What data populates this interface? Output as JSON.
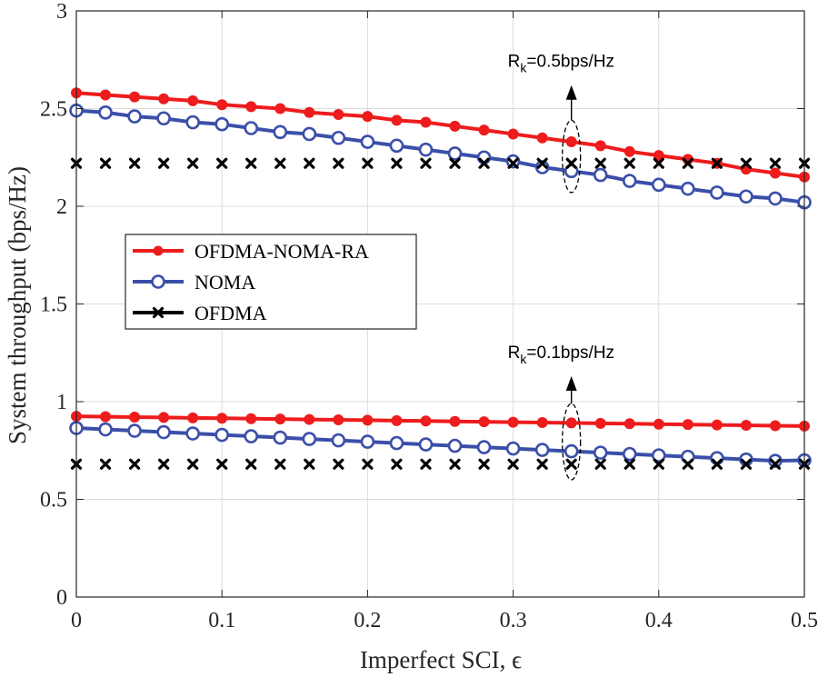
{
  "chart_data": {
    "type": "line",
    "title": "",
    "xlabel": "Imperfect SCI, ϵ",
    "ylabel": "System throughput (bps/Hz)",
    "xlim": [
      0,
      0.5
    ],
    "ylim": [
      0,
      3
    ],
    "xticks": [
      0,
      0.1,
      0.2,
      0.3,
      0.4,
      0.5
    ],
    "xtick_labels": [
      "0",
      "0.1",
      "0.2",
      "0.3",
      "0.4",
      "0.5"
    ],
    "yticks": [
      0,
      0.5,
      1,
      1.5,
      2,
      2.5,
      3
    ],
    "ytick_labels": [
      "0",
      "0.5",
      "1",
      "1.5",
      "2",
      "2.5",
      "3"
    ],
    "grid": true,
    "legend_position": "center-left",
    "x": [
      0,
      0.02,
      0.04,
      0.06,
      0.08,
      0.1,
      0.12,
      0.14,
      0.16,
      0.18,
      0.2,
      0.22,
      0.24,
      0.26,
      0.28,
      0.3,
      0.32,
      0.34,
      0.36,
      0.38,
      0.4,
      0.42,
      0.44,
      0.46,
      0.48,
      0.5
    ],
    "series": [
      {
        "name": "OFDMA-NOMA-RA",
        "group": "Rk=0.5",
        "color": "#ee1c1c",
        "marker": "filled-circle",
        "values": [
          2.58,
          2.57,
          2.56,
          2.55,
          2.54,
          2.52,
          2.51,
          2.5,
          2.48,
          2.47,
          2.46,
          2.44,
          2.43,
          2.41,
          2.39,
          2.37,
          2.35,
          2.33,
          2.31,
          2.28,
          2.26,
          2.24,
          2.22,
          2.19,
          2.17,
          2.15
        ]
      },
      {
        "name": "NOMA",
        "group": "Rk=0.5",
        "color": "#3b4fa9",
        "marker": "open-circle",
        "values": [
          2.49,
          2.48,
          2.46,
          2.45,
          2.43,
          2.42,
          2.4,
          2.38,
          2.37,
          2.35,
          2.33,
          2.31,
          2.29,
          2.27,
          2.25,
          2.23,
          2.2,
          2.18,
          2.16,
          2.13,
          2.11,
          2.09,
          2.07,
          2.05,
          2.04,
          2.02
        ]
      },
      {
        "name": "OFDMA",
        "group": "Rk=0.5",
        "color": "#000000",
        "marker": "x",
        "values": [
          2.22,
          2.22,
          2.22,
          2.22,
          2.22,
          2.22,
          2.22,
          2.22,
          2.22,
          2.22,
          2.22,
          2.22,
          2.22,
          2.22,
          2.22,
          2.22,
          2.22,
          2.22,
          2.22,
          2.22,
          2.22,
          2.22,
          2.22,
          2.22,
          2.22,
          2.22
        ]
      },
      {
        "name": "OFDMA-NOMA-RA",
        "group": "Rk=0.1",
        "color": "#ee1c1c",
        "marker": "filled-circle",
        "values": [
          0.925,
          0.923,
          0.921,
          0.919,
          0.917,
          0.915,
          0.913,
          0.911,
          0.909,
          0.907,
          0.905,
          0.903,
          0.901,
          0.899,
          0.897,
          0.895,
          0.893,
          0.891,
          0.889,
          0.887,
          0.885,
          0.883,
          0.881,
          0.879,
          0.877,
          0.875
        ]
      },
      {
        "name": "NOMA",
        "group": "Rk=0.1",
        "color": "#3b4fa9",
        "marker": "open-circle",
        "values": [
          0.865,
          0.858,
          0.851,
          0.844,
          0.837,
          0.83,
          0.823,
          0.816,
          0.809,
          0.802,
          0.795,
          0.788,
          0.781,
          0.774,
          0.767,
          0.76,
          0.753,
          0.746,
          0.739,
          0.732,
          0.725,
          0.718,
          0.711,
          0.704,
          0.697,
          0.7
        ]
      },
      {
        "name": "OFDMA",
        "group": "Rk=0.1",
        "color": "#000000",
        "marker": "x",
        "values": [
          0.68,
          0.68,
          0.68,
          0.68,
          0.68,
          0.68,
          0.68,
          0.68,
          0.68,
          0.68,
          0.68,
          0.68,
          0.68,
          0.68,
          0.68,
          0.68,
          0.68,
          0.68,
          0.68,
          0.68,
          0.68,
          0.68,
          0.68,
          0.68,
          0.68,
          0.68
        ]
      }
    ],
    "legend": [
      {
        "label": "OFDMA-NOMA-RA",
        "color": "#ee1c1c",
        "marker": "filled-circle"
      },
      {
        "label": "NOMA",
        "color": "#3b4fa9",
        "marker": "open-circle"
      },
      {
        "label": "OFDMA",
        "color": "#000000",
        "marker": "x"
      }
    ],
    "annotations": [
      {
        "main": "R",
        "sub": "k",
        "rest": "=0.5bps/Hz",
        "ellipse_at_x": 0.34,
        "ellipse_y_range": [
          2.07,
          2.44
        ],
        "arrow_to_y": 2.62
      },
      {
        "main": "R",
        "sub": "k",
        "rest": "=0.1bps/Hz",
        "ellipse_at_x": 0.34,
        "ellipse_y_range": [
          0.6,
          0.99
        ],
        "arrow_to_y": 1.13
      }
    ]
  }
}
